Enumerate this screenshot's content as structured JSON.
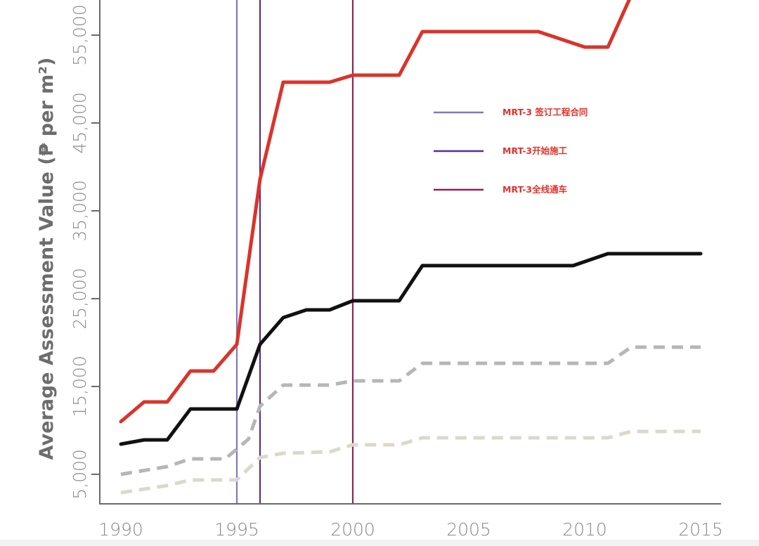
{
  "chart_data": {
    "type": "line",
    "title": "",
    "xlabel": "",
    "ylabel": "Average Assessment Value (₱ per m²)",
    "xlim": [
      1989.5,
      2016
    ],
    "ylim": [
      1640,
      59000
    ],
    "xticks": [
      "1990",
      "1995",
      "2000",
      "2005",
      "2010",
      "2015"
    ],
    "yticks": [
      {
        "value": 5000,
        "label": "5,000"
      },
      {
        "value": 15000,
        "label": "15,000"
      },
      {
        "value": 25000,
        "label": "25,000"
      },
      {
        "value": 35000,
        "label": "35,000"
      },
      {
        "value": 45000,
        "label": "45,000"
      },
      {
        "value": 55000,
        "label": "55,000"
      }
    ],
    "grid": false,
    "series": [
      {
        "name": "red",
        "color": "#d9342b",
        "dash": false,
        "points": [
          [
            1990,
            11000
          ],
          [
            1991,
            13240
          ],
          [
            1992,
            13240
          ],
          [
            1993,
            16760
          ],
          [
            1994,
            16760
          ],
          [
            1995,
            19800
          ],
          [
            1996,
            38600
          ],
          [
            1997,
            49640
          ],
          [
            1999,
            49640
          ],
          [
            2000,
            50440
          ],
          [
            2002,
            50440
          ],
          [
            2003,
            55400
          ],
          [
            2008,
            55400
          ],
          [
            2010,
            53640
          ],
          [
            2011,
            53640
          ],
          [
            2012,
            59500
          ]
        ]
      },
      {
        "name": "black",
        "color": "#111111",
        "dash": false,
        "points": [
          [
            1990,
            8440
          ],
          [
            1991,
            8920
          ],
          [
            1992,
            8920
          ],
          [
            1993,
            12440
          ],
          [
            1995,
            12440
          ],
          [
            1996,
            19800
          ],
          [
            1997,
            22840
          ],
          [
            1998,
            23720
          ],
          [
            1999,
            23720
          ],
          [
            2000,
            24760
          ],
          [
            2002,
            24760
          ],
          [
            2003,
            28760
          ],
          [
            2009.5,
            28760
          ],
          [
            2011,
            30120
          ],
          [
            2015,
            30120
          ]
        ]
      },
      {
        "name": "gray-dashed",
        "color": "#b5b6b9",
        "dash": true,
        "points": [
          [
            1990,
            5000
          ],
          [
            1992,
            5880
          ],
          [
            1993,
            6760
          ],
          [
            1994.5,
            6760
          ],
          [
            1995.5,
            9000
          ],
          [
            1996,
            12760
          ],
          [
            1997,
            15160
          ],
          [
            1999,
            15160
          ],
          [
            2000,
            15640
          ],
          [
            2002,
            15640
          ],
          [
            2003,
            17640
          ],
          [
            2011,
            17640
          ],
          [
            2012,
            19480
          ],
          [
            2015,
            19480
          ]
        ]
      },
      {
        "name": "beige-dashed",
        "color": "#dcd8cc",
        "dash": true,
        "points": [
          [
            1990,
            2920
          ],
          [
            1992,
            3720
          ],
          [
            1993,
            4360
          ],
          [
            1995,
            4360
          ],
          [
            1996,
            6920
          ],
          [
            1997,
            7400
          ],
          [
            1999,
            7560
          ],
          [
            2000,
            8360
          ],
          [
            2002,
            8360
          ],
          [
            2003,
            9160
          ],
          [
            2011,
            9160
          ],
          [
            2012,
            9880
          ],
          [
            2015,
            9880
          ]
        ]
      }
    ],
    "vertical_lines": [
      {
        "x": 1995,
        "color": "#8078c4",
        "label": "MRT-3 签订工程合同"
      },
      {
        "x": 1996,
        "color": "#5b2d8c",
        "label": "MRT-3开始施工"
      },
      {
        "x": 2000,
        "color": "#8e2452",
        "label": "MRT-3全线通车"
      }
    ],
    "legend": {
      "placement": "center-right",
      "text_color": "#e2322b"
    }
  }
}
